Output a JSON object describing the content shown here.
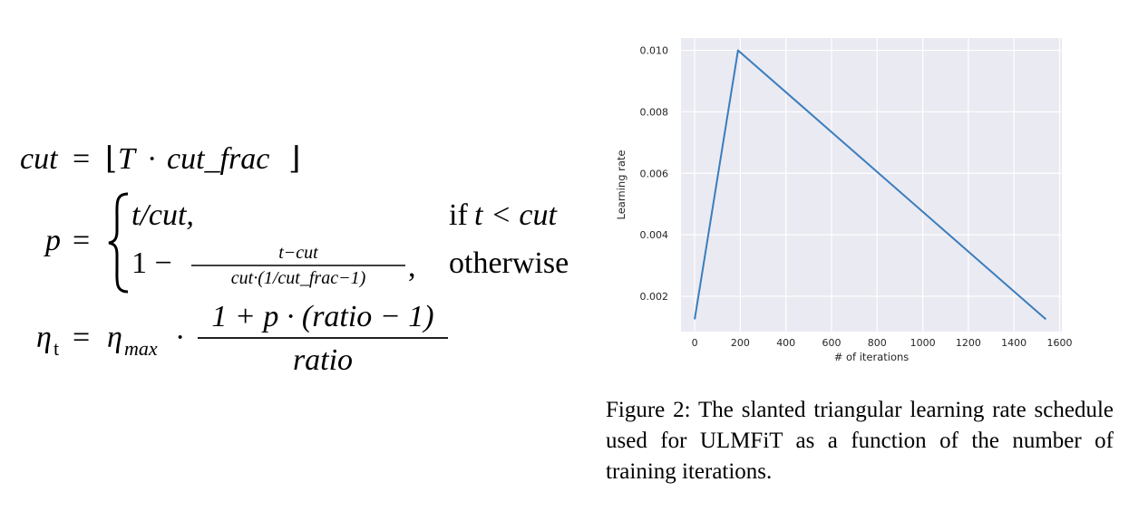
{
  "equations": {
    "cut": {
      "lhs": "cut",
      "eq": "=",
      "floor_left": "⌊",
      "T": "T",
      "dot": "·",
      "cut_frac": "cut_frac",
      "floor_right": "⌋"
    },
    "p": {
      "lhs": "p",
      "eq": "=",
      "case1_expr": "t/cut,",
      "case1_if": "if",
      "case1_cond": "t < cut",
      "case2_one_minus": "1 −",
      "case2_numerator": "t−cut",
      "case2_denominator": "cut·(1/cut_frac−1)",
      "case2_comma": ",",
      "case2_cond": "otherwise"
    },
    "eta": {
      "lhs": "η",
      "lhs_sub": "t",
      "eq": "=",
      "eta": "η",
      "eta_sub": "max",
      "dot": "·",
      "numerator": "1 + p · (ratio − 1)",
      "denominator": "ratio"
    }
  },
  "chart_data": {
    "type": "line",
    "xlabel": "# of iterations",
    "ylabel": "Learning rate",
    "xlim": [
      -60,
      1610
    ],
    "ylim": [
      0.00085,
      0.0104
    ],
    "xticks": [
      0,
      200,
      400,
      600,
      800,
      1000,
      1200,
      1400,
      1600
    ],
    "yticks": [
      0.002,
      0.004,
      0.006,
      0.008,
      0.01
    ],
    "ytick_labels": [
      "0.002",
      "0.004",
      "0.006",
      "0.008",
      "0.010"
    ],
    "grid": true,
    "background": "#eaeaf2",
    "line_color": "#3a7dbd",
    "series": [
      {
        "x": [
          0,
          190,
          1540
        ],
        "y": [
          0.00125,
          0.01,
          0.00125
        ]
      }
    ]
  },
  "caption": {
    "text": "Figure 2:  The slanted triangular learning rate schedule used for ULMFiT as a function of the number of training iterations."
  }
}
